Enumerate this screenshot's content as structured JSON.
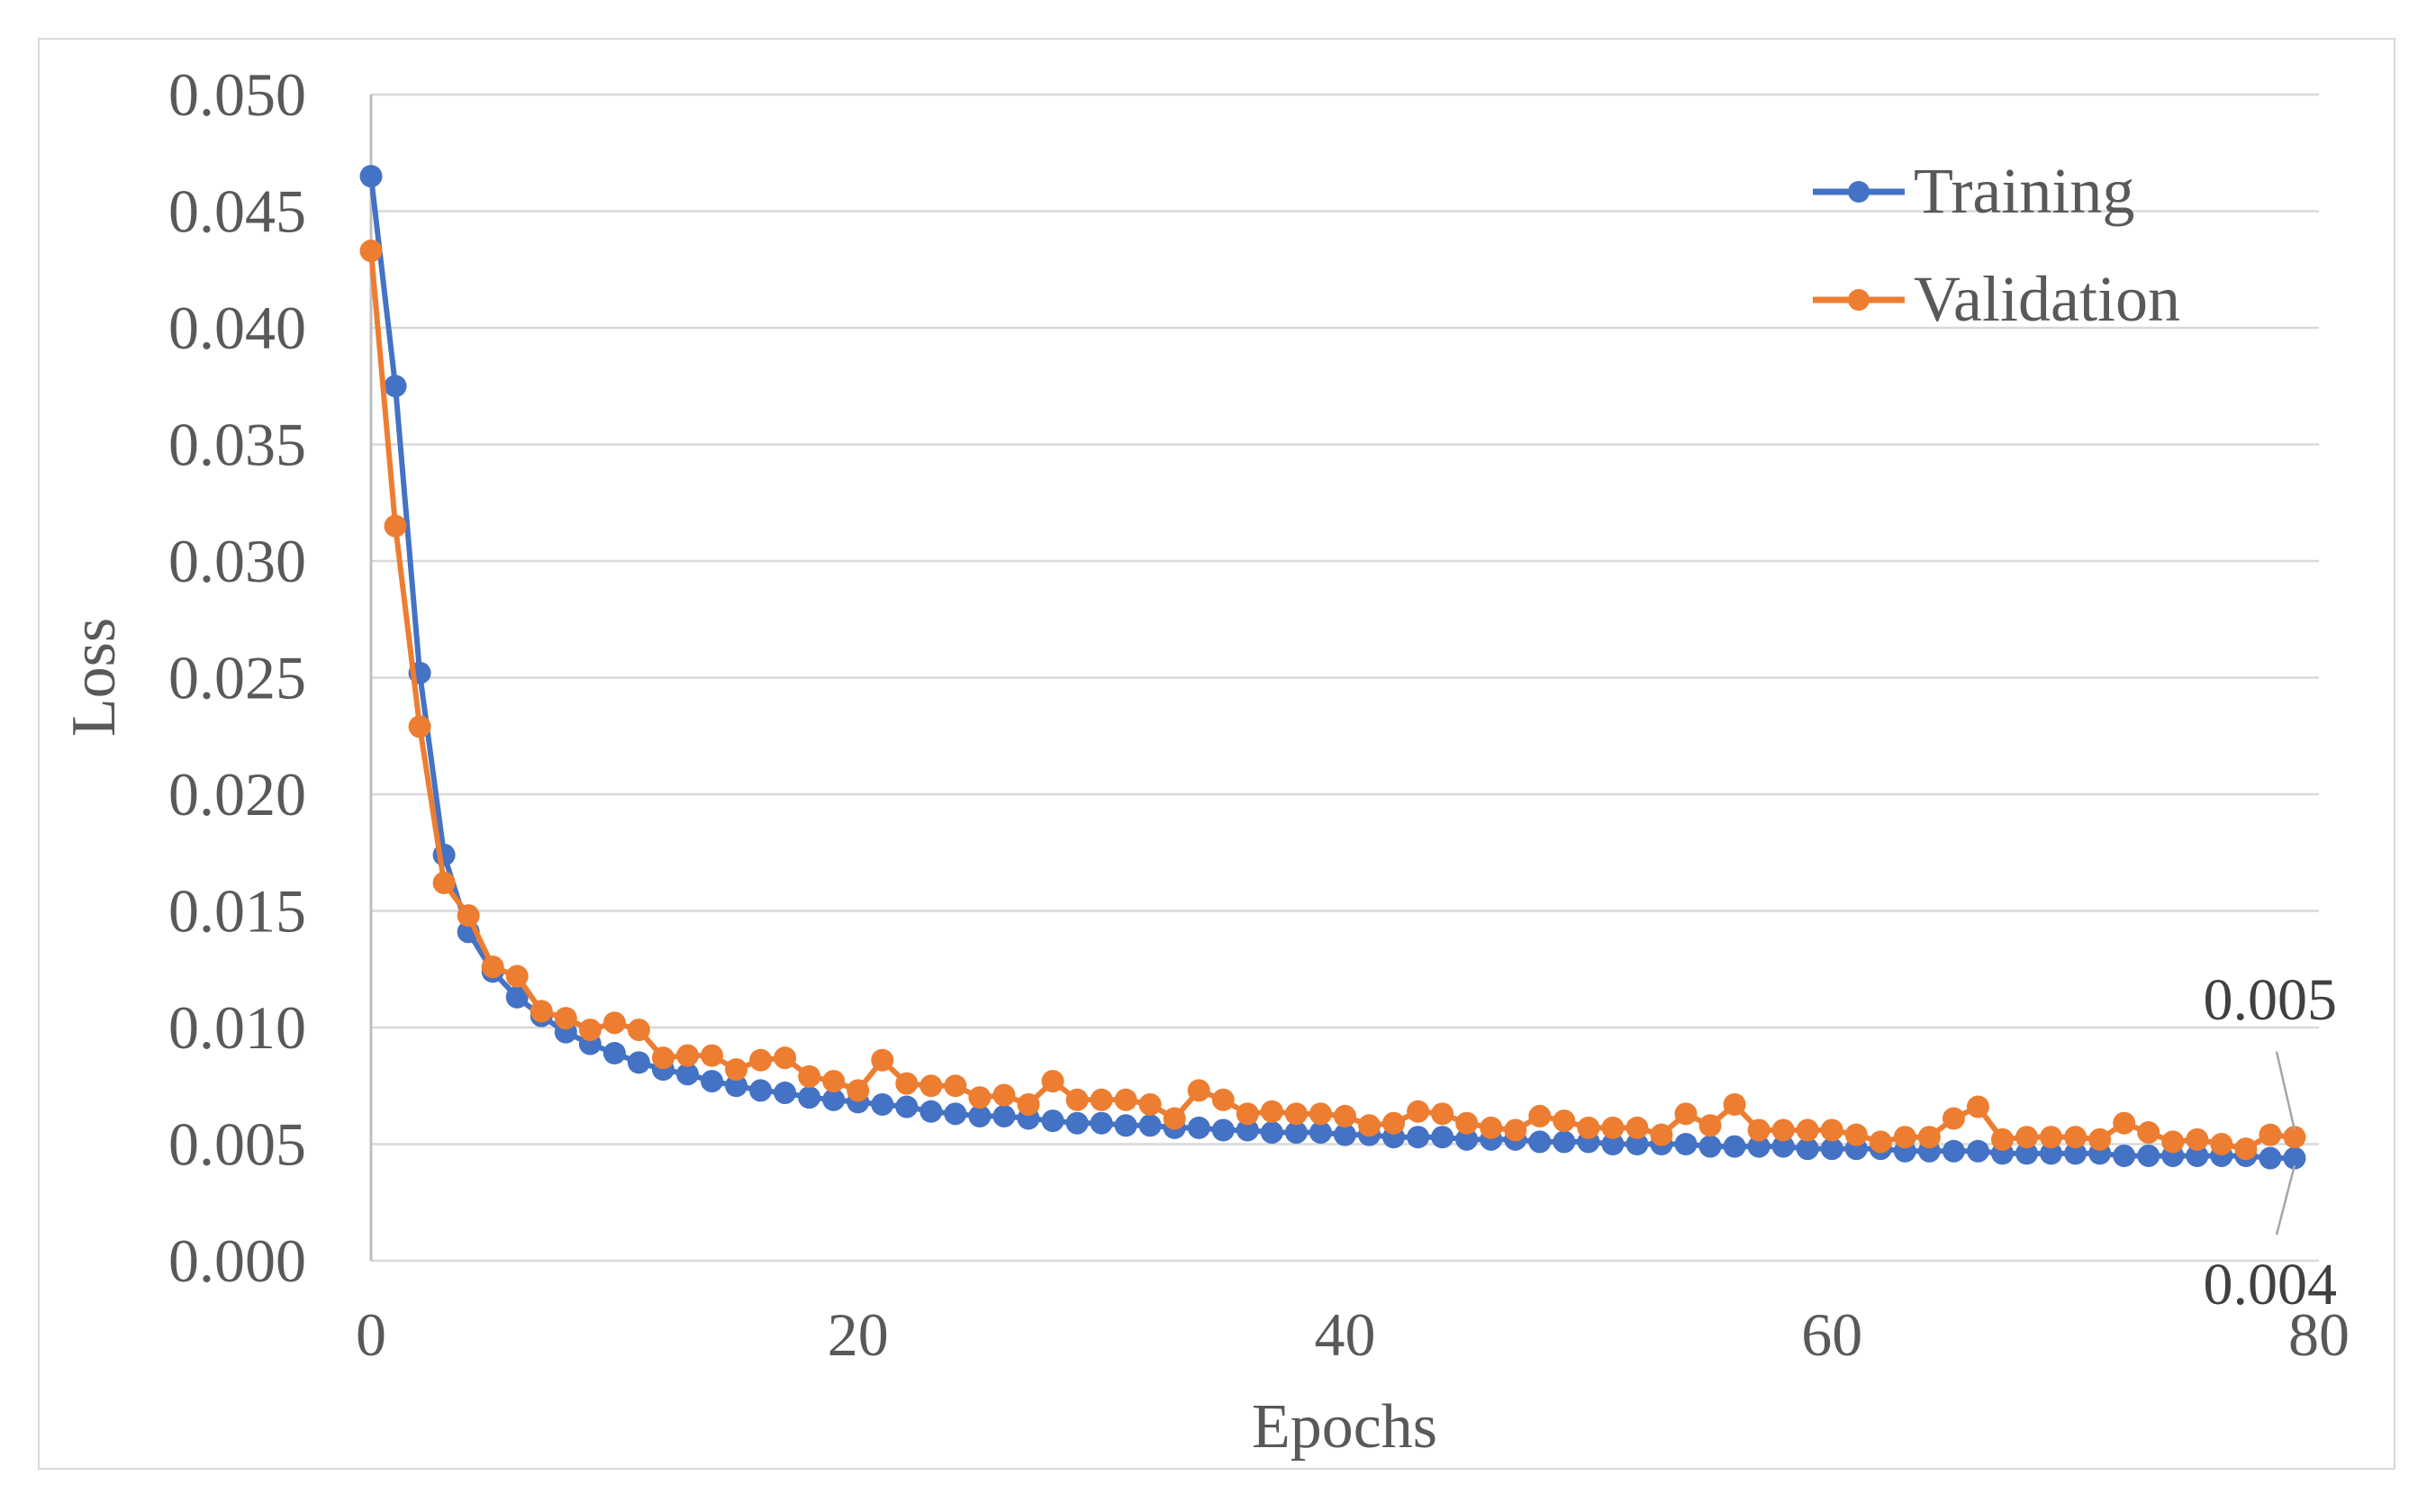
{
  "chart_data": {
    "type": "line",
    "title": "",
    "xlabel": "Epochs",
    "ylabel": "Loss",
    "xlim": [
      0,
      80
    ],
    "ylim": [
      0,
      0.05
    ],
    "x_ticks": [
      0,
      20,
      40,
      60,
      80
    ],
    "x_tick_labels": [
      "0",
      "20",
      "40",
      "60",
      "80"
    ],
    "y_ticks": [
      0,
      0.005,
      0.01,
      0.015,
      0.02,
      0.025,
      0.03,
      0.035,
      0.04,
      0.045,
      0.05
    ],
    "y_tick_labels": [
      "0.000",
      "0.005",
      "0.010",
      "0.015",
      "0.020",
      "0.025",
      "0.030",
      "0.035",
      "0.040",
      "0.045",
      "0.050"
    ],
    "grid": true,
    "legend_position": "top-right",
    "x": [
      0,
      1,
      2,
      3,
      4,
      5,
      6,
      7,
      8,
      9,
      10,
      11,
      12,
      13,
      14,
      15,
      16,
      17,
      18,
      19,
      20,
      21,
      22,
      23,
      24,
      25,
      26,
      27,
      28,
      29,
      30,
      31,
      32,
      33,
      34,
      35,
      36,
      37,
      38,
      39,
      40,
      41,
      42,
      43,
      44,
      45,
      46,
      47,
      48,
      49,
      50,
      51,
      52,
      53,
      54,
      55,
      56,
      57,
      58,
      59,
      60,
      61,
      62,
      63,
      64,
      65,
      66,
      67,
      68,
      69,
      70,
      71,
      72,
      73,
      74,
      75,
      76,
      77,
      78,
      79
    ],
    "series": [
      {
        "name": "Training",
        "color": "#4472c4",
        "values": [
          0.0465,
          0.0375,
          0.0252,
          0.0174,
          0.0141,
          0.0124,
          0.0113,
          0.0105,
          0.0098,
          0.0093,
          0.0089,
          0.0085,
          0.0082,
          0.008,
          0.0077,
          0.0075,
          0.0073,
          0.0072,
          0.007,
          0.0069,
          0.0068,
          0.0067,
          0.0066,
          0.0064,
          0.0063,
          0.0062,
          0.0062,
          0.0061,
          0.006,
          0.0059,
          0.0059,
          0.0058,
          0.0058,
          0.0057,
          0.0057,
          0.0056,
          0.0056,
          0.0055,
          0.0055,
          0.0055,
          0.0054,
          0.0054,
          0.0053,
          0.0053,
          0.0053,
          0.0052,
          0.0052,
          0.0052,
          0.0051,
          0.0051,
          0.0051,
          0.005,
          0.005,
          0.005,
          0.005,
          0.0049,
          0.0049,
          0.0049,
          0.0049,
          0.0048,
          0.0048,
          0.0048,
          0.0048,
          0.0047,
          0.0047,
          0.0047,
          0.0047,
          0.0046,
          0.0046,
          0.0046,
          0.0046,
          0.0046,
          0.0045,
          0.0045,
          0.0045,
          0.0045,
          0.0045,
          0.0045,
          0.0044,
          0.0044
        ]
      },
      {
        "name": "Validation",
        "color": "#ed7d31",
        "values": [
          0.0433,
          0.0315,
          0.0229,
          0.0162,
          0.0148,
          0.0126,
          0.0122,
          0.0107,
          0.0104,
          0.0099,
          0.0102,
          0.0099,
          0.0087,
          0.0088,
          0.0088,
          0.0082,
          0.0086,
          0.0087,
          0.0079,
          0.0077,
          0.0073,
          0.0086,
          0.0076,
          0.0075,
          0.0075,
          0.007,
          0.0071,
          0.0067,
          0.0077,
          0.0069,
          0.0069,
          0.0069,
          0.0067,
          0.0061,
          0.0073,
          0.0069,
          0.0063,
          0.0064,
          0.0063,
          0.0063,
          0.0062,
          0.0058,
          0.0059,
          0.0064,
          0.0063,
          0.0059,
          0.0057,
          0.0056,
          0.0062,
          0.006,
          0.0057,
          0.0057,
          0.0057,
          0.0054,
          0.0063,
          0.0058,
          0.0067,
          0.0056,
          0.0056,
          0.0056,
          0.0056,
          0.0054,
          0.0051,
          0.0053,
          0.0053,
          0.0061,
          0.0066,
          0.0052,
          0.0053,
          0.0053,
          0.0053,
          0.0052,
          0.0059,
          0.0055,
          0.0051,
          0.0052,
          0.005,
          0.0048,
          0.0054,
          0.0053
        ]
      }
    ],
    "annotations": [
      {
        "text": "0.005",
        "series": "Validation",
        "x": 79
      },
      {
        "text": "0.004",
        "series": "Training",
        "x": 79
      }
    ]
  }
}
